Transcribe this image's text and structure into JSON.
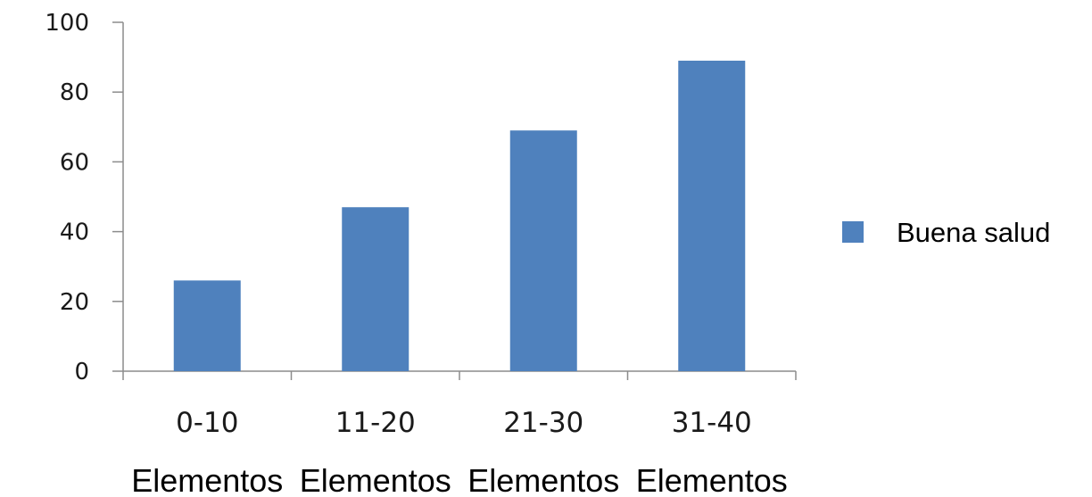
{
  "chart_data": {
    "type": "bar",
    "categories": [
      "0-10",
      "11-20",
      "21-30",
      "31-40"
    ],
    "category_sublabels": [
      "Elementos",
      "Elementos",
      "Elementos",
      "Elementos"
    ],
    "series": [
      {
        "name": "Buena salud",
        "values": [
          26,
          47,
          69,
          89
        ],
        "color": "#4f81bd"
      }
    ],
    "ylim": [
      0,
      100
    ],
    "yticks": [
      0,
      20,
      40,
      60,
      80,
      100
    ],
    "grid": false,
    "legend": "right"
  }
}
